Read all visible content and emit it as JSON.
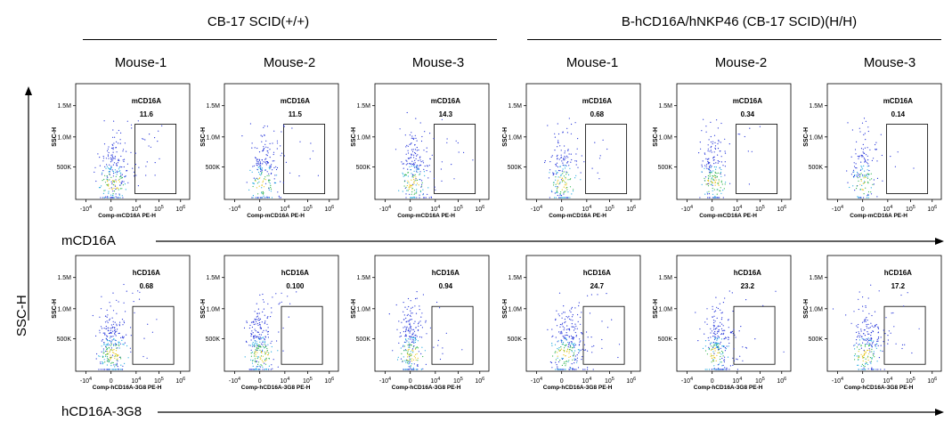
{
  "groups": [
    {
      "title": "CB-17 SCID(+/+)"
    },
    {
      "title": "B-hCD16A/hNKP46 (CB-17 SCID)(H/H)"
    }
  ],
  "mice": [
    "Mouse-1",
    "Mouse-2",
    "Mouse-3",
    "Mouse-1",
    "Mouse-2",
    "Mouse-3"
  ],
  "y_axis_label": "SSC-H",
  "row_axis_labels": [
    "mCD16A",
    "hCD16A-3G8"
  ],
  "colors": {
    "dots_blue": "#1f2fd8",
    "dots_cyan": "#1aa7e0",
    "dots_green": "#2cb34a",
    "dots_yellow": "#e8c51a"
  },
  "chart_data": [
    {
      "type": "scatter",
      "row": "mCD16A",
      "mouse": "Mouse-1",
      "group": "CB-17 SCID(+/+)",
      "gate_label": "mCD16A",
      "gate_pct": "11.6",
      "xlabel": "Comp-mCD16A PE-H",
      "ylabel": "SSC-H",
      "yticks": [
        "500K",
        "1.0M",
        "1.5M"
      ],
      "xticks": [
        "-10^4",
        "0",
        "10^4",
        "10^5",
        "10^6"
      ],
      "cx": 0.9,
      "spread": 0.55,
      "dens": 260
    },
    {
      "type": "scatter",
      "row": "mCD16A",
      "mouse": "Mouse-2",
      "group": "CB-17 SCID(+/+)",
      "gate_label": "mCD16A",
      "gate_pct": "11.5",
      "xlabel": "Comp-mCD16A PE-H",
      "ylabel": "SSC-H",
      "yticks": [
        "500K",
        "1.0M",
        "1.5M"
      ],
      "xticks": [
        "-10^4",
        "0",
        "10^4",
        "10^5",
        "10^6"
      ],
      "cx": 1.0,
      "spread": 0.6,
      "dens": 220
    },
    {
      "type": "scatter",
      "row": "mCD16A",
      "mouse": "Mouse-3",
      "group": "CB-17 SCID(+/+)",
      "gate_label": "mCD16A",
      "gate_pct": "14.3",
      "xlabel": "Comp-mCD16A PE-H",
      "ylabel": "SSC-H",
      "yticks": [
        "500K",
        "1.0M",
        "1.5M"
      ],
      "xticks": [
        "-10^4",
        "0",
        "10^4",
        "10^5",
        "10^6"
      ],
      "cx": 1.1,
      "spread": 0.65,
      "dens": 240
    },
    {
      "type": "scatter",
      "row": "mCD16A",
      "mouse": "Mouse-1",
      "group": "B-hCD16A/hNKP46 (CB-17 SCID)(H/H)",
      "gate_label": "mCD16A",
      "gate_pct": "0.68",
      "xlabel": "Comp-mCD16A PE-H",
      "ylabel": "SSC-H",
      "yticks": [
        "500K",
        "1.0M",
        "1.5M"
      ],
      "xticks": [
        "-10^4",
        "0",
        "10^4",
        "10^5",
        "10^6"
      ],
      "cx": 0.8,
      "spread": 0.35,
      "dens": 200
    },
    {
      "type": "scatter",
      "row": "mCD16A",
      "mouse": "Mouse-2",
      "group": "B-hCD16A/hNKP46 (CB-17 SCID)(H/H)",
      "gate_label": "mCD16A",
      "gate_pct": "0.34",
      "xlabel": "Comp-mCD16A PE-H",
      "ylabel": "SSC-H",
      "yticks": [
        "500K",
        "1.0M",
        "1.5M"
      ],
      "xticks": [
        "-10^4",
        "0",
        "10^4",
        "10^5",
        "10^6"
      ],
      "cx": 0.85,
      "spread": 0.35,
      "dens": 220
    },
    {
      "type": "scatter",
      "row": "mCD16A",
      "mouse": "Mouse-3",
      "group": "B-hCD16A/hNKP46 (CB-17 SCID)(H/H)",
      "gate_label": "mCD16A",
      "gate_pct": "0.14",
      "xlabel": "Comp-mCD16A PE-H",
      "ylabel": "SSC-H",
      "yticks": [
        "500K",
        "1.0M",
        "1.5M"
      ],
      "xticks": [
        "-10^4",
        "0",
        "10^4",
        "10^5",
        "10^6"
      ],
      "cx": 0.75,
      "spread": 0.3,
      "dens": 160
    },
    {
      "type": "scatter",
      "row": "hCD16A-3G8",
      "mouse": "Mouse-1",
      "group": "CB-17 SCID(+/+)",
      "gate_label": "hCD16A",
      "gate_pct": "0.68",
      "xlabel": "Comp-hCD16A-3G8 PE-H",
      "ylabel": "SSC-H",
      "yticks": [
        "500K",
        "1.0M",
        "1.5M"
      ],
      "xticks": [
        "-10^4",
        "0",
        "10^4",
        "10^5",
        "10^6"
      ],
      "cx": 0.8,
      "spread": 0.35,
      "dens": 280
    },
    {
      "type": "scatter",
      "row": "hCD16A-3G8",
      "mouse": "Mouse-2",
      "group": "CB-17 SCID(+/+)",
      "gate_label": "hCD16A",
      "gate_pct": "0.100",
      "xlabel": "Comp-hCD16A-3G8 PE-H",
      "ylabel": "SSC-H",
      "yticks": [
        "500K",
        "1.0M",
        "1.5M"
      ],
      "xticks": [
        "-10^4",
        "0",
        "10^4",
        "10^5",
        "10^6"
      ],
      "cx": 0.75,
      "spread": 0.3,
      "dens": 280
    },
    {
      "type": "scatter",
      "row": "hCD16A-3G8",
      "mouse": "Mouse-3",
      "group": "CB-17 SCID(+/+)",
      "gate_label": "hCD16A",
      "gate_pct": "0.94",
      "xlabel": "Comp-hCD16A-3G8 PE-H",
      "ylabel": "SSC-H",
      "yticks": [
        "500K",
        "1.0M",
        "1.5M"
      ],
      "xticks": [
        "-10^4",
        "0",
        "10^4",
        "10^5",
        "10^6"
      ],
      "cx": 0.8,
      "spread": 0.4,
      "dens": 260
    },
    {
      "type": "scatter",
      "row": "hCD16A-3G8",
      "mouse": "Mouse-1",
      "group": "B-hCD16A/hNKP46 (CB-17 SCID)(H/H)",
      "gate_label": "hCD16A",
      "gate_pct": "24.7",
      "xlabel": "Comp-hCD16A-3G8 PE-H",
      "ylabel": "SSC-H",
      "yticks": [
        "500K",
        "1.0M",
        "1.5M"
      ],
      "xticks": [
        "-10^4",
        "0",
        "10^4",
        "10^5",
        "10^6"
      ],
      "cx": 1.2,
      "spread": 0.7,
      "dens": 280
    },
    {
      "type": "scatter",
      "row": "hCD16A-3G8",
      "mouse": "Mouse-2",
      "group": "B-hCD16A/hNKP46 (CB-17 SCID)(H/H)",
      "gate_label": "hCD16A",
      "gate_pct": "23.2",
      "xlabel": "Comp-hCD16A-3G8 PE-H",
      "ylabel": "SSC-H",
      "yticks": [
        "500K",
        "1.0M",
        "1.5M"
      ],
      "xticks": [
        "-10^4",
        "0",
        "10^4",
        "10^5",
        "10^6"
      ],
      "cx": 1.2,
      "spread": 0.7,
      "dens": 260
    },
    {
      "type": "scatter",
      "row": "hCD16A-3G8",
      "mouse": "Mouse-3",
      "group": "B-hCD16A/hNKP46 (CB-17 SCID)(H/H)",
      "gate_label": "hCD16A",
      "gate_pct": "17.2",
      "xlabel": "Comp-hCD16A-3G8 PE-H",
      "ylabel": "SSC-H",
      "yticks": [
        "500K",
        "1.0M",
        "1.5M"
      ],
      "xticks": [
        "-10^4",
        "0",
        "10^4",
        "10^5",
        "10^6"
      ],
      "cx": 1.1,
      "spread": 0.65,
      "dens": 240
    }
  ]
}
